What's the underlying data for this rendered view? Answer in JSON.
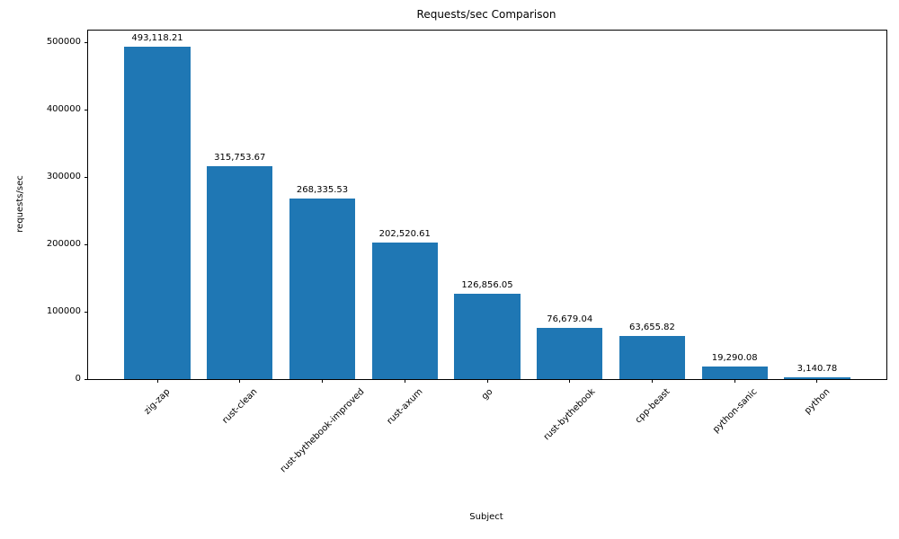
{
  "chart_data": {
    "type": "bar",
    "title": "Requests/sec Comparison",
    "xlabel": "Subject",
    "ylabel": "requests/sec",
    "categories": [
      "zig-zap",
      "rust-clean",
      "rust-bythebook-improved",
      "rust-axum",
      "go",
      "rust-bythebook",
      "cpp-beast",
      "python-sanic",
      "python"
    ],
    "values": [
      493118.21,
      315753.67,
      268335.53,
      202520.61,
      126856.05,
      76679.04,
      63655.82,
      19290.08,
      3140.78
    ],
    "value_labels": [
      "493,118.21",
      "315,753.67",
      "268,335.53",
      "202,520.61",
      "126,856.05",
      "76,679.04",
      "63,655.82",
      "19,290.08",
      "3,140.78"
    ],
    "yticks": [
      0,
      100000,
      200000,
      300000,
      400000,
      500000
    ],
    "ytick_labels": [
      "0",
      "100000",
      "200000",
      "300000",
      "400000",
      "500000"
    ],
    "ylim": [
      0,
      517774
    ],
    "bar_color": "#1f77b4",
    "bar_width_fraction": 0.8,
    "xtick_rotation": 45,
    "grid": false,
    "legend": null
  }
}
